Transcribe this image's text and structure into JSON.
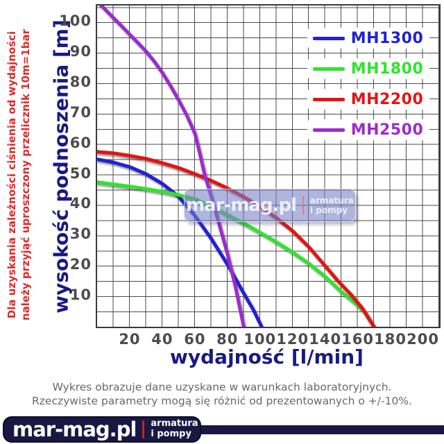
{
  "side_note": {
    "line1": "Dla uzyskania zależności ciśnienia od wydajności",
    "line2": "należy przyjąć uproszczony przelicznik 10m=1bar"
  },
  "chart_data": {
    "type": "line",
    "title": "",
    "xlabel": "wydajność [l/min]",
    "ylabel": "wysokość podnoszenia [m]",
    "xlim": [
      0,
      210
    ],
    "ylim": [
      0,
      105.5
    ],
    "x_ticks": [
      20,
      40,
      60,
      80,
      100,
      120,
      140,
      160,
      180,
      200
    ],
    "y_ticks": [
      10,
      20,
      30,
      40,
      50,
      60,
      70,
      80,
      90,
      100
    ],
    "grid": {
      "x_step": 10,
      "y_step": 5,
      "color": "#4a4a4a",
      "on": true
    },
    "legend_position": "top-right",
    "series": [
      {
        "name": "MH1300",
        "color": "#2121d6",
        "points": [
          [
            0,
            55
          ],
          [
            10,
            54
          ],
          [
            20,
            52.5
          ],
          [
            30,
            50.2
          ],
          [
            40,
            47
          ],
          [
            50,
            42.8
          ],
          [
            60,
            36.5
          ],
          [
            70,
            29
          ],
          [
            80,
            20.5
          ],
          [
            90,
            11
          ],
          [
            96,
            5.5
          ],
          [
            101,
            0
          ]
        ]
      },
      {
        "name": "MH1800",
        "color": "#2ee42e",
        "points": [
          [
            0,
            47.5
          ],
          [
            10,
            46.8
          ],
          [
            20,
            46.1
          ],
          [
            30,
            45.3
          ],
          [
            40,
            44.4
          ],
          [
            50,
            43.3
          ],
          [
            60,
            42
          ],
          [
            70,
            39.6
          ],
          [
            80,
            36.8
          ],
          [
            90,
            34
          ],
          [
            100,
            31
          ],
          [
            110,
            27.9
          ],
          [
            120,
            24.5
          ],
          [
            130,
            20.8
          ],
          [
            140,
            16.5
          ],
          [
            150,
            11.5
          ],
          [
            158,
            8
          ],
          [
            164,
            5
          ],
          [
            170,
            0
          ]
        ]
      },
      {
        "name": "MH2200",
        "color": "#e31414",
        "points": [
          [
            0,
            57.5
          ],
          [
            10,
            57
          ],
          [
            20,
            56.2
          ],
          [
            30,
            55.2
          ],
          [
            40,
            53.8
          ],
          [
            50,
            52.2
          ],
          [
            60,
            50.2
          ],
          [
            70,
            48
          ],
          [
            80,
            45.5
          ],
          [
            90,
            42.7
          ],
          [
            100,
            39.5
          ],
          [
            110,
            35.8
          ],
          [
            120,
            31.5
          ],
          [
            130,
            26.2
          ],
          [
            140,
            20
          ],
          [
            148,
            15
          ],
          [
            156,
            10.5
          ],
          [
            163,
            6
          ],
          [
            170,
            0
          ]
        ]
      },
      {
        "name": "MH2500",
        "color": "#9c2ccd",
        "points": [
          [
            0,
            107
          ],
          [
            5,
            104.2
          ],
          [
            10,
            101.5
          ],
          [
            15,
            98.8
          ],
          [
            20,
            96
          ],
          [
            25,
            93.3
          ],
          [
            30,
            90.5
          ],
          [
            35,
            87.2
          ],
          [
            40,
            83.5
          ],
          [
            45,
            79.2
          ],
          [
            50,
            74.5
          ],
          [
            55,
            69.5
          ],
          [
            60,
            63.5
          ],
          [
            63,
            57
          ],
          [
            66,
            50
          ],
          [
            70,
            43
          ],
          [
            75,
            33.5
          ],
          [
            80,
            24
          ],
          [
            85,
            13
          ],
          [
            90,
            0
          ]
        ]
      }
    ]
  },
  "watermark": {
    "brand": "mar-mag.pl",
    "tag1": "armatura",
    "tag2": "i pompy"
  },
  "footer": {
    "line1": "Wykres obrazuje dane uzyskane w warunkach laboratoryjnych.",
    "line2": "Rzeczywiste parametry mogą się różnić od prezentowanych o +/-10%."
  },
  "logo": {
    "brand": "mar-mag.pl",
    "tag1": "armatura",
    "tag2": "i pompy"
  }
}
